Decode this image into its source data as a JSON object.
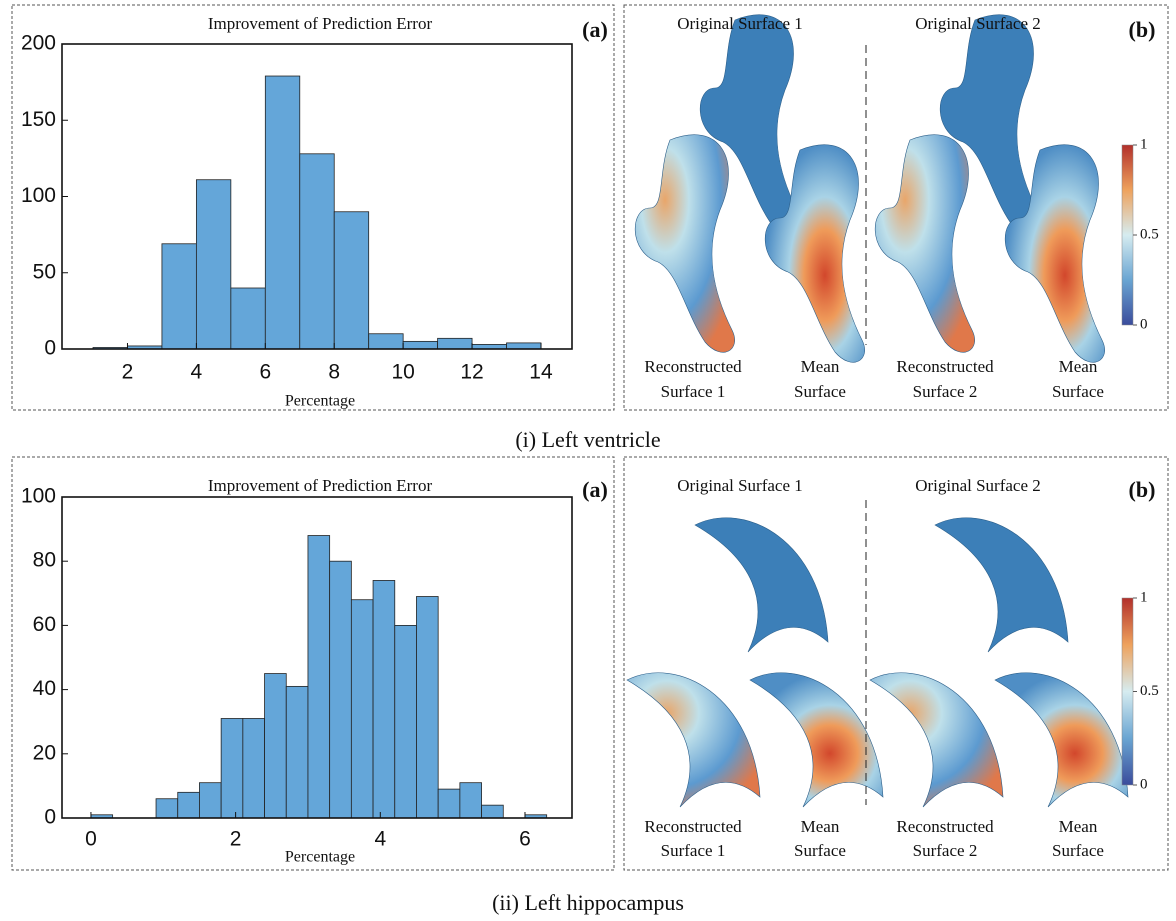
{
  "chart_data": [
    {
      "type": "histogram",
      "title": "Improvement of Prediction Error",
      "panel_label": "(a)",
      "xlabel": "Percentage",
      "bins": [
        1,
        2,
        3,
        4,
        5,
        6,
        7,
        8,
        9,
        10,
        11,
        12,
        13,
        14
      ],
      "values": [
        1,
        2,
        69,
        111,
        40,
        179,
        128,
        90,
        10,
        5,
        7,
        3,
        4
      ],
      "color": "#64a6d9",
      "xlim": [
        0.1,
        14.9
      ],
      "xticks": [
        2,
        4,
        6,
        8,
        10,
        12,
        14
      ],
      "ylim": [
        0,
        200
      ],
      "yticks": [
        0,
        50,
        100,
        150,
        200
      ]
    },
    {
      "type": "histogram",
      "title": "Improvement of Prediction Error",
      "panel_label": "(a)",
      "xlabel": "Percentage",
      "bins": [
        0,
        0.3,
        0.6,
        0.9,
        1.2,
        1.5,
        1.8,
        2.1,
        2.4,
        2.7,
        3,
        3.3,
        3.6,
        3.9,
        4.2,
        4.5,
        4.8,
        5.1,
        5.4,
        5.7,
        6,
        6.3
      ],
      "values": [
        1,
        0,
        0,
        6,
        8,
        11,
        31,
        31,
        45,
        41,
        88,
        80,
        68,
        74,
        60,
        69,
        9,
        11,
        4,
        0,
        1
      ],
      "color": "#64a6d9",
      "xlim": [
        -0.4,
        6.65
      ],
      "xticks": [
        0,
        2,
        4,
        6
      ],
      "ylim": [
        0,
        100
      ],
      "yticks": [
        0,
        20,
        40,
        60,
        80,
        100
      ]
    }
  ],
  "surfaces": [
    {
      "panel_label": "(b)",
      "titles": [
        "Original Surface 1",
        "Original Surface 2"
      ],
      "labels": [
        [
          "Reconstructed",
          "Surface 1"
        ],
        [
          "Mean",
          "Surface"
        ],
        [
          "Reconstructed",
          "Surface 2"
        ],
        [
          "Mean",
          "Surface"
        ]
      ],
      "colorbar_ticks": [
        1,
        0.5,
        0
      ]
    },
    {
      "panel_label": "(b)",
      "titles": [
        "Original Surface 1",
        "Original Surface 2"
      ],
      "labels": [
        [
          "Reconstructed",
          "Surface 1"
        ],
        [
          "Mean",
          "Surface"
        ],
        [
          "Reconstructed",
          "Surface 2"
        ],
        [
          "Mean",
          "Surface"
        ]
      ],
      "colorbar_ticks": [
        1,
        0.5,
        0
      ]
    }
  ],
  "captions": [
    "(i) Left ventricle",
    "(ii) Left hippocampus"
  ]
}
